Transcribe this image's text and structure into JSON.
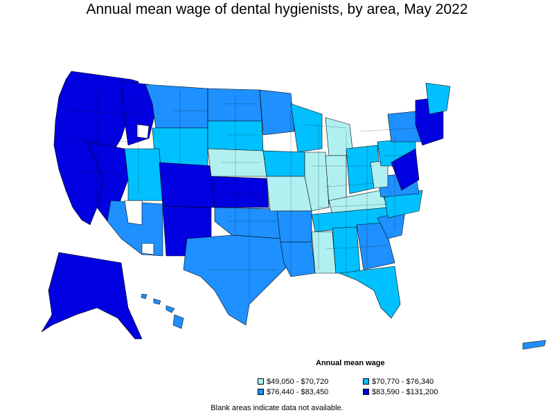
{
  "title": "Annual mean wage of dental hygienists, by area, May 2022",
  "legend": {
    "title": "Annual mean wage",
    "items": [
      {
        "label": "$49,050 - $70,720",
        "color": "#b0f0f0"
      },
      {
        "label": "$70,770 - $76,340",
        "color": "#00c0ff"
      },
      {
        "label": "$76,440 - $83,450",
        "color": "#1e90ff"
      },
      {
        "label": "$83,590 - $131,200",
        "color": "#0000e0"
      }
    ]
  },
  "footnote": "Blank areas indicate data not available.",
  "colors": {
    "level1": "#b0f0f0",
    "level2": "#00c0ff",
    "level3": "#1e90ff",
    "level4": "#0000e0",
    "border": "#000000"
  }
}
